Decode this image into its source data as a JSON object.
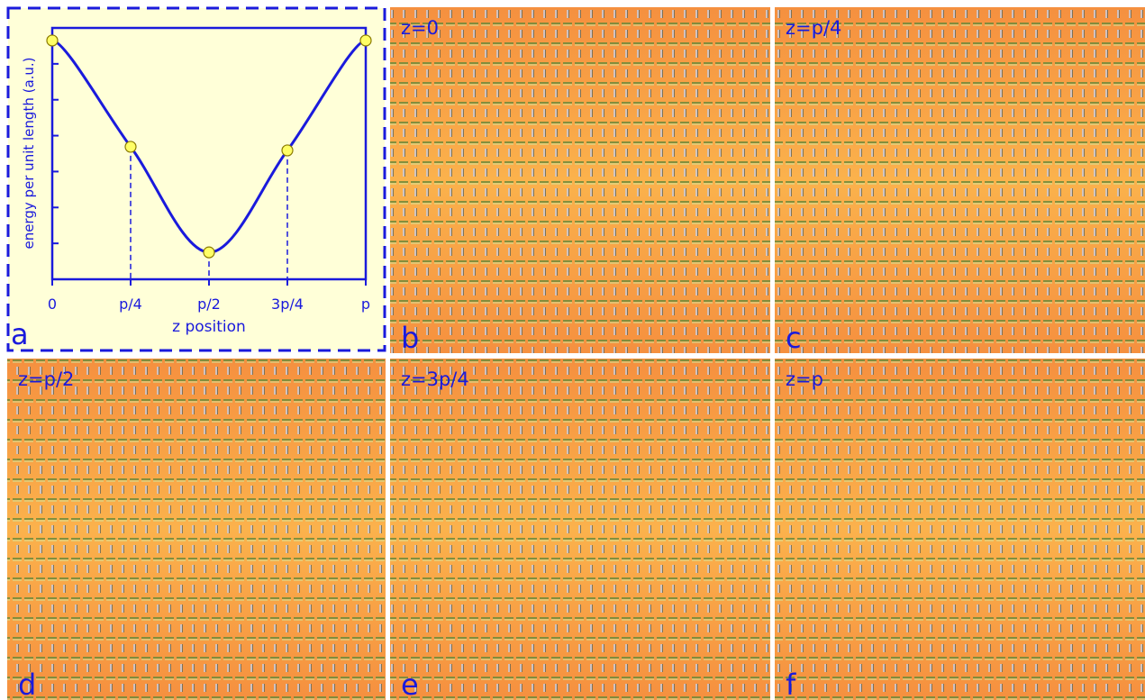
{
  "chart_data": {
    "type": "line",
    "panel_label": "a",
    "x_label": "z position",
    "y_label": "energy per unit length (a.u.)",
    "categories": [
      "0",
      "p/4",
      "p/2",
      "3p/4",
      "p"
    ],
    "values": [
      6.65,
      3.69,
      0.75,
      3.59,
      6.65
    ],
    "color": "#1a1adc",
    "marker_color": "#ffff66",
    "ylim": [
      0,
      7
    ],
    "yticks": [
      1,
      2,
      3,
      4,
      5,
      6
    ],
    "drop_lines": true
  },
  "panels": [
    {
      "letter": "b",
      "label": "z=0"
    },
    {
      "letter": "c",
      "label": "z=p/4"
    },
    {
      "letter": "d",
      "label": "z=p/2"
    },
    {
      "letter": "e",
      "label": "z=3p/4"
    },
    {
      "letter": "f",
      "label": "z=p"
    }
  ]
}
